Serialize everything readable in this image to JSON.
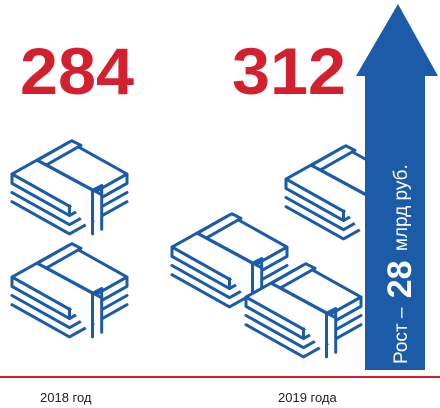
{
  "items": [
    {
      "number": "284",
      "label": "2018 год"
    },
    {
      "number": "312",
      "label": "2019 года"
    }
  ],
  "growth": {
    "prefix": "Рост –",
    "number": "28",
    "unit": "млрд руб."
  }
}
